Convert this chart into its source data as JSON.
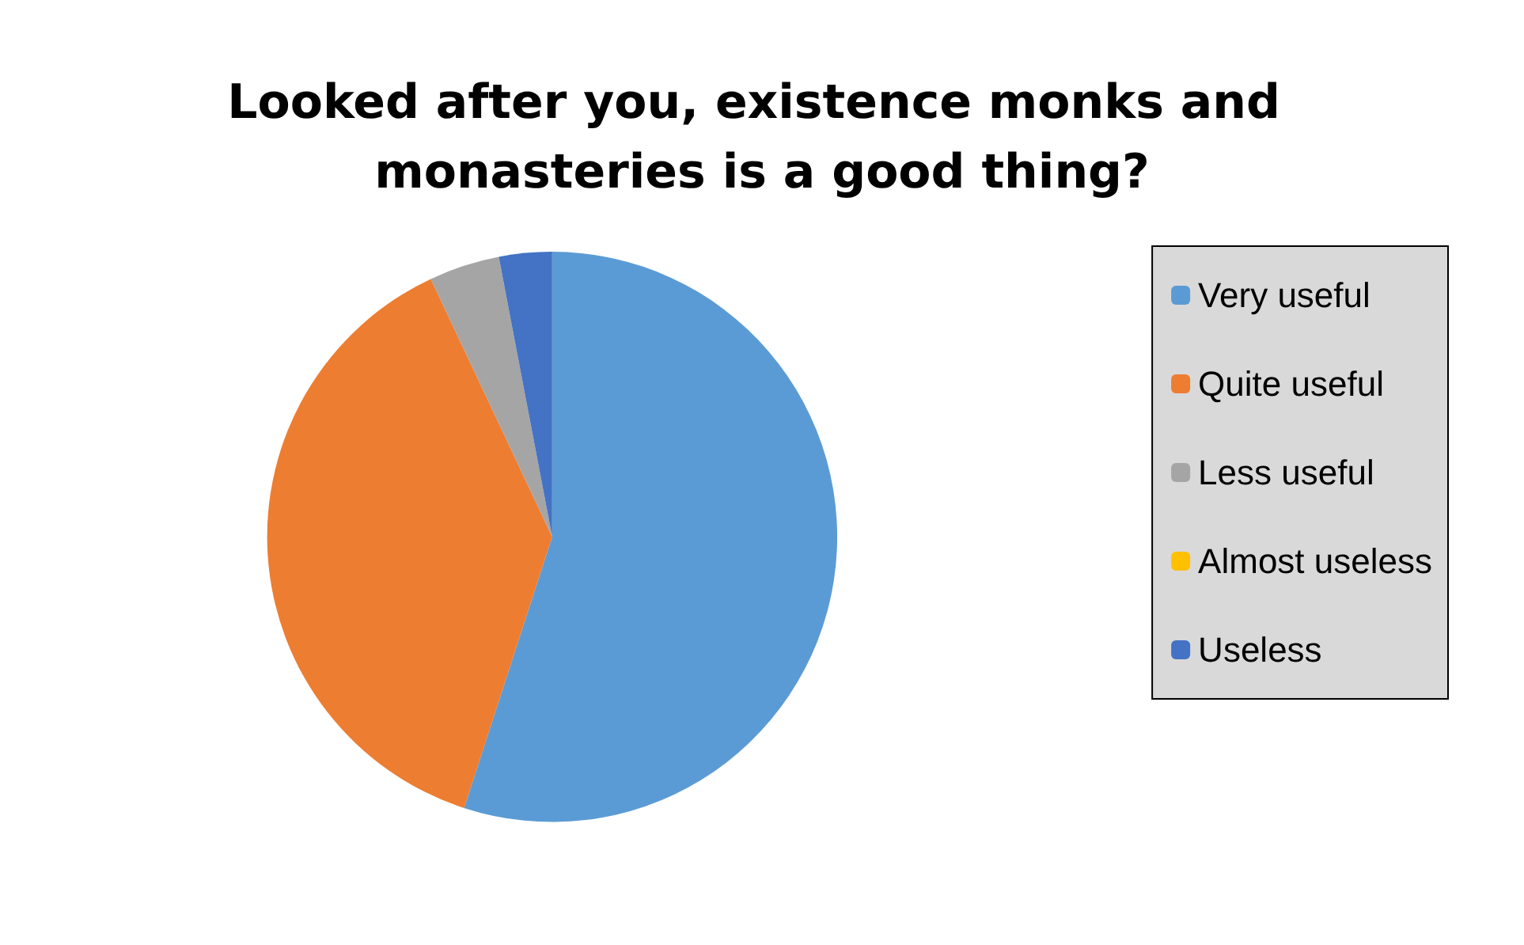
{
  "chart_data": {
    "type": "pie",
    "title": "Looked after you, existence monks and monasteries is a good thing?",
    "categories": [
      "Very useful",
      "Quite useful",
      "Less useful",
      "Almost useless",
      "Useless"
    ],
    "values": [
      55,
      38,
      4,
      0,
      3
    ],
    "colors": [
      "#5b9bd5",
      "#ed7d31",
      "#a5a5a5",
      "#ffc000",
      "#4472c4"
    ],
    "legend": "right"
  }
}
